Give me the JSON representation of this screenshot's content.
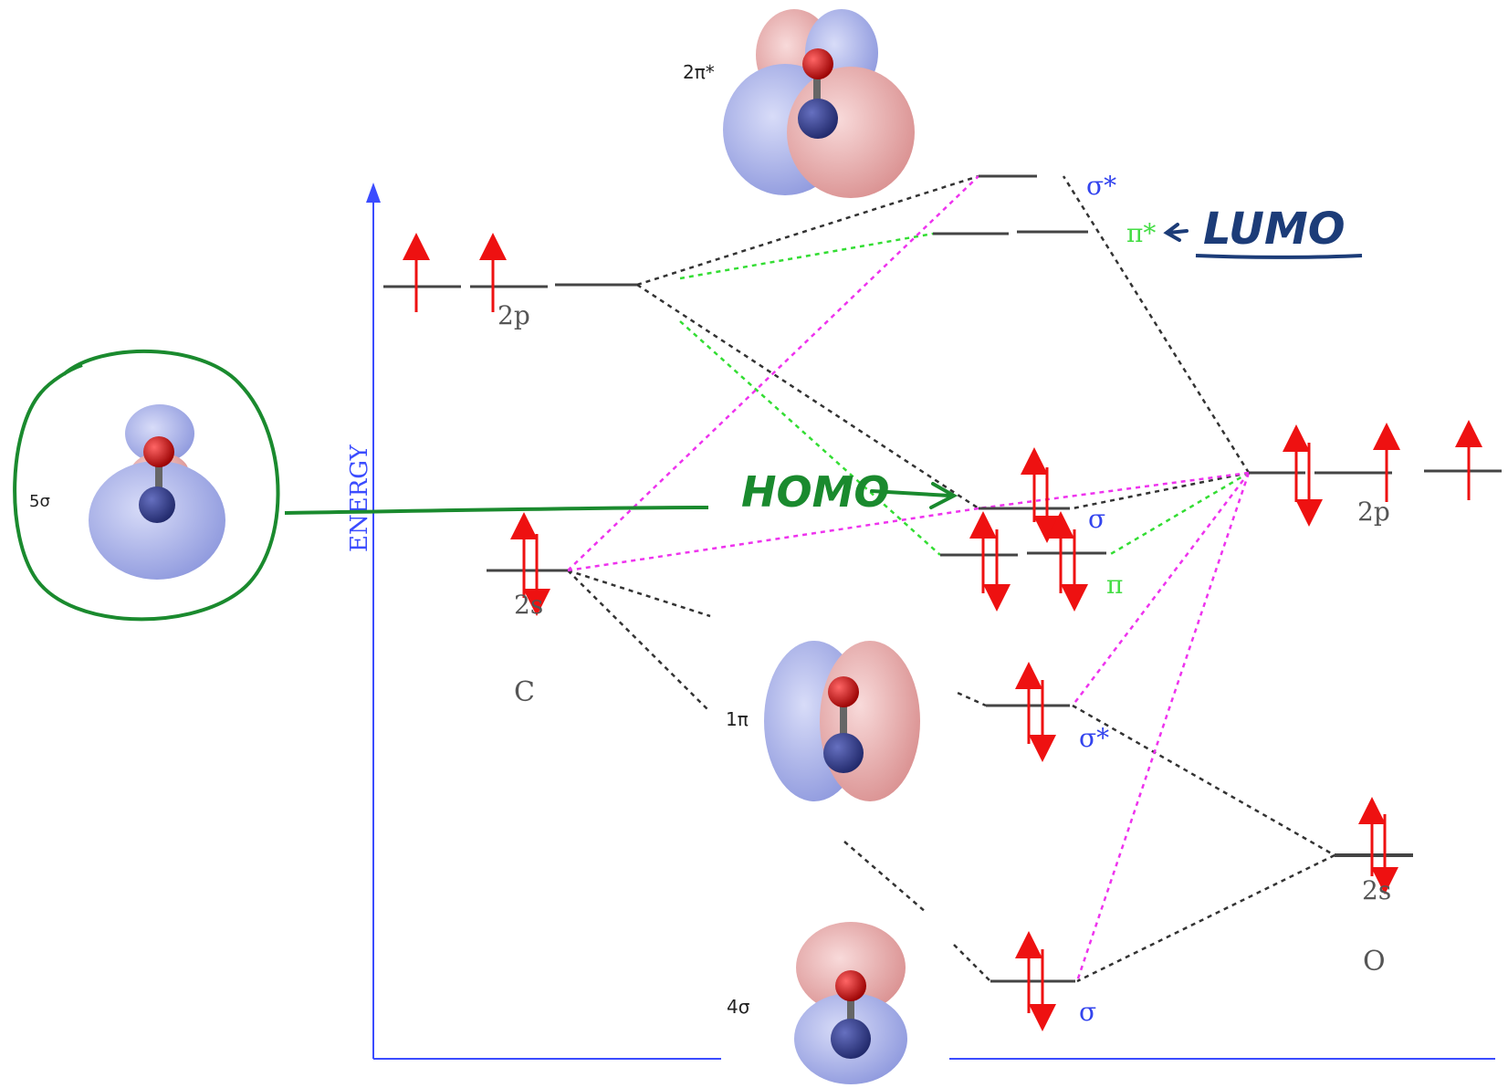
{
  "diagram": {
    "axis_label": "ENERGY",
    "carbon": {
      "atom": "C",
      "orbital_2p": "2p",
      "orbital_2s": "2s"
    },
    "oxygen": {
      "atom": "O",
      "orbital_2p": "2p",
      "orbital_2s": "2s"
    },
    "mo_labels": {
      "sigma_star_top": "σ*",
      "pi_star": "π*",
      "sigma_homo": "σ",
      "pi": "π",
      "sigma_star_low": "σ*",
      "sigma_bottom": "σ"
    },
    "orbital_pictures": {
      "two_pi_star": "2π*",
      "five_sigma": "5σ",
      "one_pi": "1π",
      "four_sigma": "4σ"
    },
    "annotations": {
      "lumo": "LUMO",
      "homo": "HOMO"
    },
    "colors": {
      "axis": "#3b4cff",
      "level": "#444444",
      "electron": "#ee1111",
      "correlation_black": "#333333",
      "correlation_green": "#33dd33",
      "correlation_magenta": "#ee33ee",
      "sigma_label": "#3344ee",
      "pi_label": "#44dd44",
      "lobe_blue": "#9aa4e6",
      "lobe_red": "#e6a0a0",
      "annotation_green": "#1a8a2e",
      "annotation_navy": "#1c3c78"
    }
  }
}
